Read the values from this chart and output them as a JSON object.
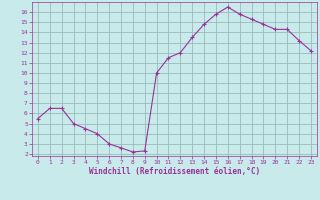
{
  "x": [
    0,
    1,
    2,
    3,
    4,
    5,
    6,
    7,
    8,
    9,
    10,
    11,
    12,
    13,
    14,
    15,
    16,
    17,
    18,
    19,
    20,
    21,
    22,
    23
  ],
  "y": [
    5.5,
    6.5,
    6.5,
    5.0,
    4.5,
    4.0,
    3.0,
    2.6,
    2.2,
    2.3,
    10.0,
    11.5,
    12.0,
    13.5,
    14.8,
    15.8,
    16.5,
    15.8,
    15.3,
    14.8,
    14.3,
    14.3,
    13.2,
    12.2
  ],
  "line_color": "#993399",
  "marker": "+",
  "bg_color": "#c8eaea",
  "grid_color": "#99bbbb",
  "axis_label_color": "#993399",
  "tick_color": "#993399",
  "xlabel": "Windchill (Refroidissement éolien,°C)",
  "xlim": [
    -0.5,
    23.5
  ],
  "ylim": [
    1.8,
    17.0
  ],
  "yticks": [
    2,
    3,
    4,
    5,
    6,
    7,
    8,
    9,
    10,
    11,
    12,
    13,
    14,
    15,
    16
  ],
  "xticks": [
    0,
    1,
    2,
    3,
    4,
    5,
    6,
    7,
    8,
    9,
    10,
    11,
    12,
    13,
    14,
    15,
    16,
    17,
    18,
    19,
    20,
    21,
    22,
    23
  ]
}
